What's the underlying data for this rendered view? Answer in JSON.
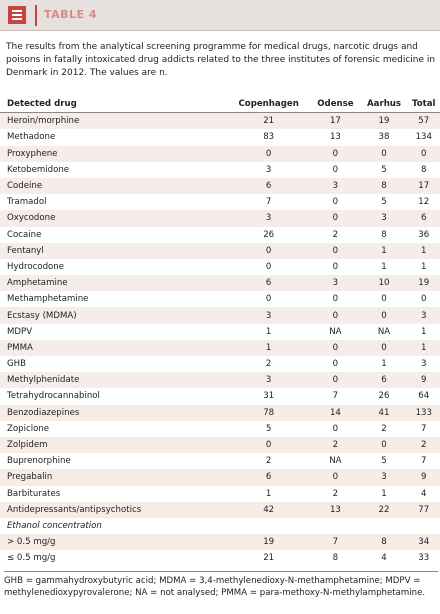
{
  "header": {
    "title": "TABLE 4"
  },
  "caption": "The results from the analytical screening programme for medical drugs, narcotic drugs and poisons in fatally intoxicated drug addicts related to the three institutes of forensic medicine in Denmark in 2012. The values are n.",
  "table": {
    "columns": [
      "Detected drug",
      "Copenhagen",
      "Odense",
      "Aarhus",
      "Total"
    ],
    "rows": [
      [
        "Heroin/morphine",
        21,
        17,
        19,
        57
      ],
      [
        "Methadone",
        83,
        13,
        38,
        134
      ],
      [
        "Proxyphene",
        0,
        0,
        0,
        0
      ],
      [
        "Ketobemidone",
        3,
        0,
        5,
        8
      ],
      [
        "Codeine",
        6,
        3,
        8,
        17
      ],
      [
        "Tramadol",
        7,
        0,
        5,
        12
      ],
      [
        "Oxycodone",
        3,
        0,
        3,
        6
      ],
      [
        "Cocaine",
        26,
        2,
        8,
        36
      ],
      [
        "Fentanyl",
        0,
        0,
        1,
        1
      ],
      [
        "Hydrocodone",
        0,
        0,
        1,
        1
      ],
      [
        "Amphetamine",
        6,
        3,
        10,
        19
      ],
      [
        "Methamphetamine",
        0,
        0,
        0,
        0
      ],
      [
        "Ecstasy (MDMA)",
        3,
        0,
        0,
        3
      ],
      [
        "MDPV",
        1,
        "NA",
        "NA",
        1
      ],
      [
        "PMMA",
        1,
        0,
        0,
        1
      ],
      [
        "GHB",
        2,
        0,
        1,
        3
      ],
      [
        "Methylphenidate",
        3,
        0,
        6,
        9
      ],
      [
        "Tetrahydrocannabinol",
        31,
        7,
        26,
        64
      ],
      [
        "Benzodiazepines",
        78,
        14,
        41,
        133
      ],
      [
        "Zopiclone",
        5,
        0,
        2,
        7
      ],
      [
        "Zolpidem",
        0,
        2,
        0,
        2
      ],
      [
        "Buprenorphine",
        2,
        "NA",
        5,
        7
      ],
      [
        "Pregabalin",
        6,
        0,
        3,
        9
      ],
      [
        "Barbiturates",
        1,
        2,
        1,
        4
      ],
      [
        "Antidepressants/antipsychotics",
        42,
        13,
        22,
        77
      ]
    ],
    "section": {
      "title": "Ethanol concentration",
      "rows": [
        [
          "> 0.5 mg/g",
          19,
          7,
          8,
          34
        ],
        [
          "≤ 0.5 mg/g",
          21,
          8,
          4,
          33
        ]
      ]
    }
  },
  "footnote": "GHB = gammahydroxybutyric acid;  MDMA = 3,4-methylenedioxy-N-methamphetamine;  MDPV = methylenedioxypyrovalerone;  NA = not analysed;  PMMA = para-methoxy-N-methylamphetamine."
}
